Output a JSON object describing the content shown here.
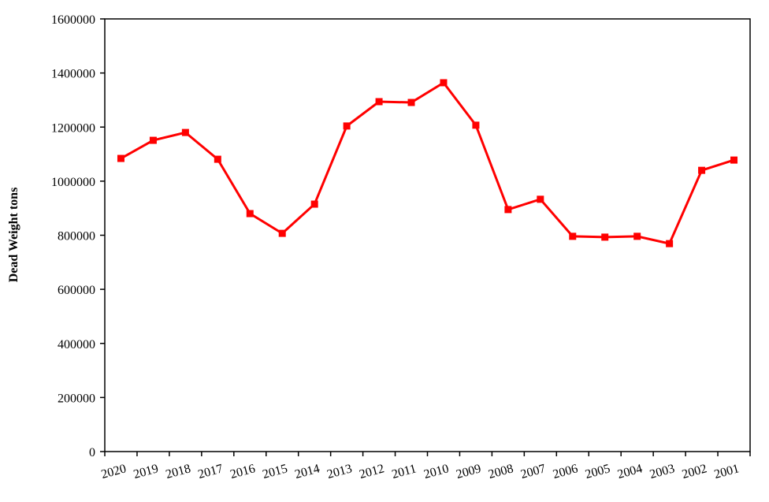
{
  "chart_data": {
    "type": "line",
    "y_label": "Dead Weight tons",
    "categories": [
      "2020",
      "2019",
      "2018",
      "2017",
      "2016",
      "2015",
      "2014",
      "2013",
      "2012",
      "2011",
      "2010",
      "2009",
      "2008",
      "2007",
      "2006",
      "2005",
      "2004",
      "2003",
      "2002",
      "2001"
    ],
    "series": [
      {
        "color": "#ff0000",
        "values": [
          1084000,
          1151000,
          1180000,
          1081000,
          880000,
          807000,
          915000,
          1204000,
          1294000,
          1291000,
          1364000,
          1207000,
          895000,
          933000,
          796000,
          793000,
          796000,
          769000,
          1040000,
          1078000
        ]
      }
    ],
    "ylim": [
      0,
      1600000
    ],
    "yticks": [
      0,
      200000,
      400000,
      600000,
      800000,
      1000000,
      1200000,
      1400000,
      1600000
    ]
  }
}
